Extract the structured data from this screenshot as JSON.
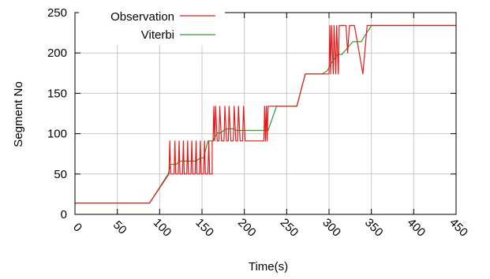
{
  "chart_data": {
    "type": "line",
    "xlabel": "Time(s)",
    "ylabel": "Segment No",
    "xlim": [
      0,
      450
    ],
    "ylim": [
      0,
      250
    ],
    "xticks": [
      0,
      50,
      100,
      150,
      200,
      250,
      300,
      350,
      400,
      450
    ],
    "yticks": [
      0,
      50,
      100,
      150,
      200,
      250
    ],
    "grid": true,
    "legend_position": "top-left",
    "series": [
      {
        "name": "Observation",
        "color": "#e41a1c",
        "points": [
          [
            0,
            14
          ],
          [
            88,
            14
          ],
          [
            111,
            50
          ],
          [
            112,
            91
          ],
          [
            113,
            50
          ],
          [
            117,
            50
          ],
          [
            118,
            91
          ],
          [
            119,
            50
          ],
          [
            122,
            50
          ],
          [
            123,
            91
          ],
          [
            124,
            50
          ],
          [
            127,
            50
          ],
          [
            128,
            91
          ],
          [
            129,
            50
          ],
          [
            132,
            50
          ],
          [
            133,
            91
          ],
          [
            134,
            50
          ],
          [
            137,
            50
          ],
          [
            138,
            91
          ],
          [
            139,
            50
          ],
          [
            142,
            50
          ],
          [
            143,
            91
          ],
          [
            144,
            50
          ],
          [
            147,
            50
          ],
          [
            148,
            91
          ],
          [
            149,
            50
          ],
          [
            152,
            50
          ],
          [
            153,
            91
          ],
          [
            154,
            50
          ],
          [
            157,
            50
          ],
          [
            158,
            91
          ],
          [
            159,
            50
          ],
          [
            162,
            50
          ],
          [
            162,
            91
          ],
          [
            163,
            91
          ],
          [
            164,
            134
          ],
          [
            165,
            91
          ],
          [
            166,
            134
          ],
          [
            168,
            91
          ],
          [
            170,
            91
          ],
          [
            171,
            134
          ],
          [
            173,
            91
          ],
          [
            176,
            91
          ],
          [
            177,
            134
          ],
          [
            179,
            91
          ],
          [
            181,
            91
          ],
          [
            182,
            134
          ],
          [
            184,
            91
          ],
          [
            187,
            91
          ],
          [
            188,
            134
          ],
          [
            190,
            91
          ],
          [
            192,
            91
          ],
          [
            193,
            134
          ],
          [
            195,
            91
          ],
          [
            198,
            91
          ],
          [
            199,
            134
          ],
          [
            201,
            91
          ],
          [
            223,
            91
          ],
          [
            224,
            134
          ],
          [
            225,
            91
          ],
          [
            226,
            134
          ],
          [
            227,
            91
          ],
          [
            228,
            134
          ],
          [
            262,
            134
          ],
          [
            272,
            174
          ],
          [
            300,
            174
          ],
          [
            301,
            234
          ],
          [
            302,
            174
          ],
          [
            303,
            234
          ],
          [
            305,
            174
          ],
          [
            306,
            234
          ],
          [
            308,
            174
          ],
          [
            309,
            234
          ],
          [
            311,
            174
          ],
          [
            312,
            234
          ],
          [
            320,
            234
          ],
          [
            322,
            200
          ],
          [
            324,
            234
          ],
          [
            330,
            234
          ],
          [
            340,
            174
          ],
          [
            345,
            234
          ],
          [
            450,
            234
          ]
        ]
      },
      {
        "name": "Viterbi",
        "color": "#2ca02c",
        "points": [
          [
            0,
            14
          ],
          [
            88,
            14
          ],
          [
            110,
            50
          ],
          [
            113,
            62
          ],
          [
            120,
            62
          ],
          [
            123,
            66
          ],
          [
            143,
            66
          ],
          [
            148,
            70
          ],
          [
            152,
            70
          ],
          [
            157,
            91
          ],
          [
            163,
            91
          ],
          [
            168,
            101
          ],
          [
            172,
            101
          ],
          [
            178,
            106
          ],
          [
            187,
            106
          ],
          [
            191,
            104
          ],
          [
            228,
            104
          ],
          [
            238,
            134
          ],
          [
            262,
            134
          ],
          [
            272,
            174
          ],
          [
            292,
            174
          ],
          [
            298,
            178
          ],
          [
            303,
            188
          ],
          [
            310,
            198
          ],
          [
            315,
            198
          ],
          [
            320,
            204
          ],
          [
            328,
            214
          ],
          [
            338,
            214
          ],
          [
            344,
            224
          ],
          [
            350,
            234
          ],
          [
            450,
            234
          ]
        ]
      }
    ]
  }
}
